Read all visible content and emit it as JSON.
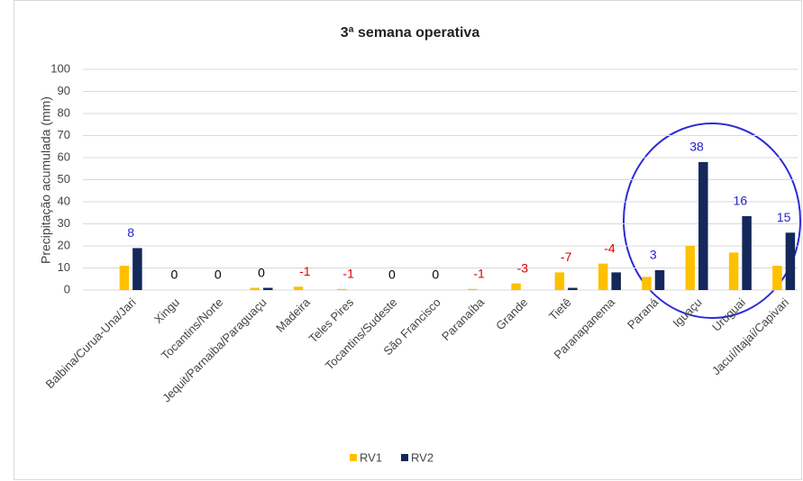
{
  "chart_data": {
    "type": "bar",
    "title": "3ª semana operativa",
    "y_label": "Precipitação acumulada (mm)",
    "categories": [
      "Balbina/Curua-Una/Jari",
      "Xingu",
      "Tocantins/Norte",
      "Jequit/Parnaiba/Paraguaçu",
      "Madeira",
      "Teles Pires",
      "Tocantins/Sudeste",
      "São Francisco",
      "Paranaíba",
      "Grande",
      "Tietê",
      "Paranapanema",
      "Paraná",
      "Iguaçu",
      "Uruguai",
      "Jacuí/Itajaí/Capivari"
    ],
    "series": [
      {
        "name": "RV1",
        "color": "#ffc000",
        "values": [
          11,
          0,
          0,
          1,
          1.5,
          0.5,
          0,
          0,
          0.5,
          3,
          8,
          12,
          6,
          20,
          17,
          11
        ]
      },
      {
        "name": "RV2",
        "color": "#14285a",
        "values": [
          19,
          0,
          0,
          1,
          0,
          0,
          0,
          0,
          0,
          0,
          1,
          8,
          9,
          58,
          33.5,
          26
        ]
      }
    ],
    "differences": [
      8,
      0,
      0,
      0,
      -1,
      -1,
      0,
      0,
      -1,
      -3,
      -7,
      -4,
      3,
      38,
      16,
      15
    ],
    "difference_colors": {
      "positive": "#2323c8",
      "negative": "#e00000",
      "zero": "#000000"
    },
    "ylim": [
      0,
      100
    ],
    "yticks": [
      0,
      10,
      20,
      30,
      40,
      50,
      60,
      70,
      80,
      90,
      100
    ],
    "grid": true,
    "legend": "bottom"
  }
}
